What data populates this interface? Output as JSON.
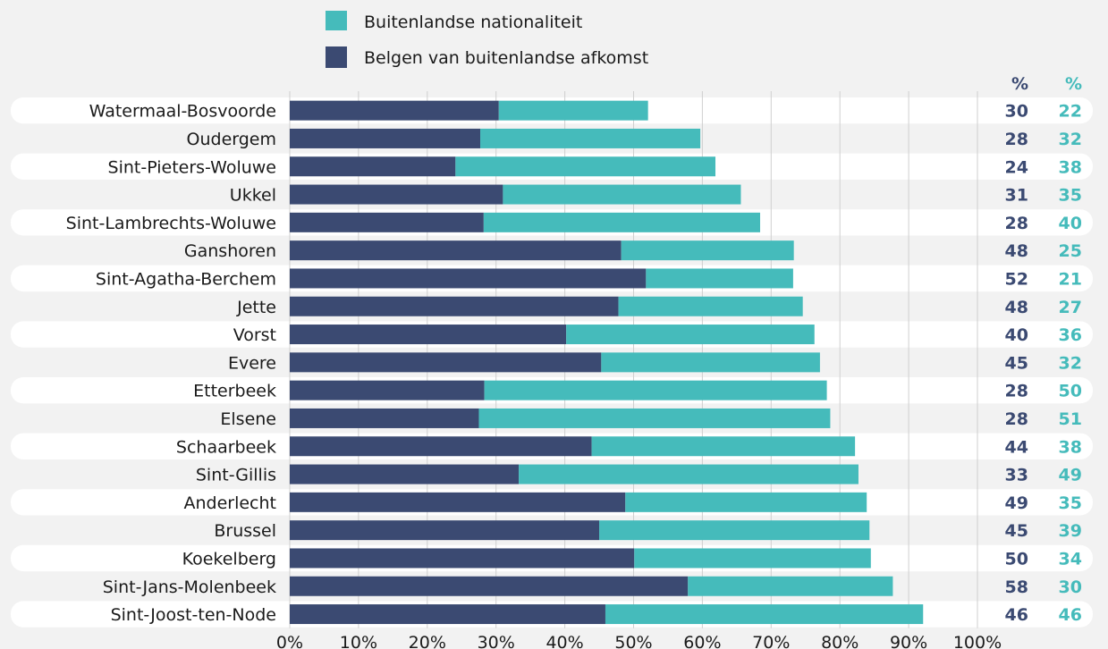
{
  "colors": {
    "foreign_nationality": "#45bbbb",
    "belgian_foreign_origin": "#3b4a72",
    "row_band": "#ffffff",
    "grid": "#cfcfcf"
  },
  "chart_data": {
    "type": "bar",
    "orientation": "horizontal",
    "stacked": true,
    "categories": [
      "Watermaal-Bosvoorde",
      "Oudergem",
      "Sint-Pieters-Woluwe",
      "Ukkel",
      "Sint-Lambrechts-Woluwe",
      "Ganshoren",
      "Sint-Agatha-Berchem",
      "Jette",
      "Vorst",
      "Evere",
      "Etterbeek",
      "Elsene",
      "Schaarbeek",
      "Sint-Gillis",
      "Anderlecht",
      "Brussel",
      "Koekelberg",
      "Sint-Jans-Molenbeek",
      "Sint-Joost-ten-Node"
    ],
    "series": [
      {
        "name": "Belgen van buitenlandse afkomst",
        "color": "#3b4a72",
        "values": [
          30.4,
          27.7,
          24.1,
          31.0,
          28.2,
          48.2,
          51.8,
          47.8,
          40.2,
          45.3,
          28.3,
          27.5,
          43.9,
          33.3,
          48.8,
          45.0,
          50.1,
          57.9,
          45.9
        ],
        "labels": [
          "30",
          "28",
          "24",
          "31",
          "28",
          "48",
          "52",
          "48",
          "40",
          "45",
          "28",
          "28",
          "44",
          "33",
          "49",
          "45",
          "50",
          "58",
          "46"
        ]
      },
      {
        "name": "Buitenlandse nationaliteit",
        "color": "#45bbbb",
        "values": [
          21.7,
          32.0,
          37.8,
          34.6,
          40.2,
          25.1,
          21.4,
          26.8,
          36.1,
          31.8,
          49.8,
          51.1,
          38.3,
          49.4,
          35.1,
          39.3,
          34.4,
          29.8,
          46.2
        ],
        "labels": [
          "22",
          "32",
          "38",
          "35",
          "40",
          "25",
          "21",
          "27",
          "36",
          "32",
          "50",
          "51",
          "38",
          "49",
          "35",
          "39",
          "34",
          "30",
          "46"
        ]
      }
    ],
    "xlim": [
      0,
      100
    ],
    "xticks": [
      "0%",
      "10%",
      "20%",
      "30%",
      "40%",
      "50%",
      "60%",
      "70%",
      "80%",
      "90%",
      "100%"
    ],
    "value_column_headers": [
      "%",
      "%"
    ],
    "legend": {
      "placement": "top",
      "entries": [
        "Buitenlandse nationaliteit",
        "Belgen van buitenlandse afkomst"
      ]
    },
    "grid": "vertical"
  }
}
